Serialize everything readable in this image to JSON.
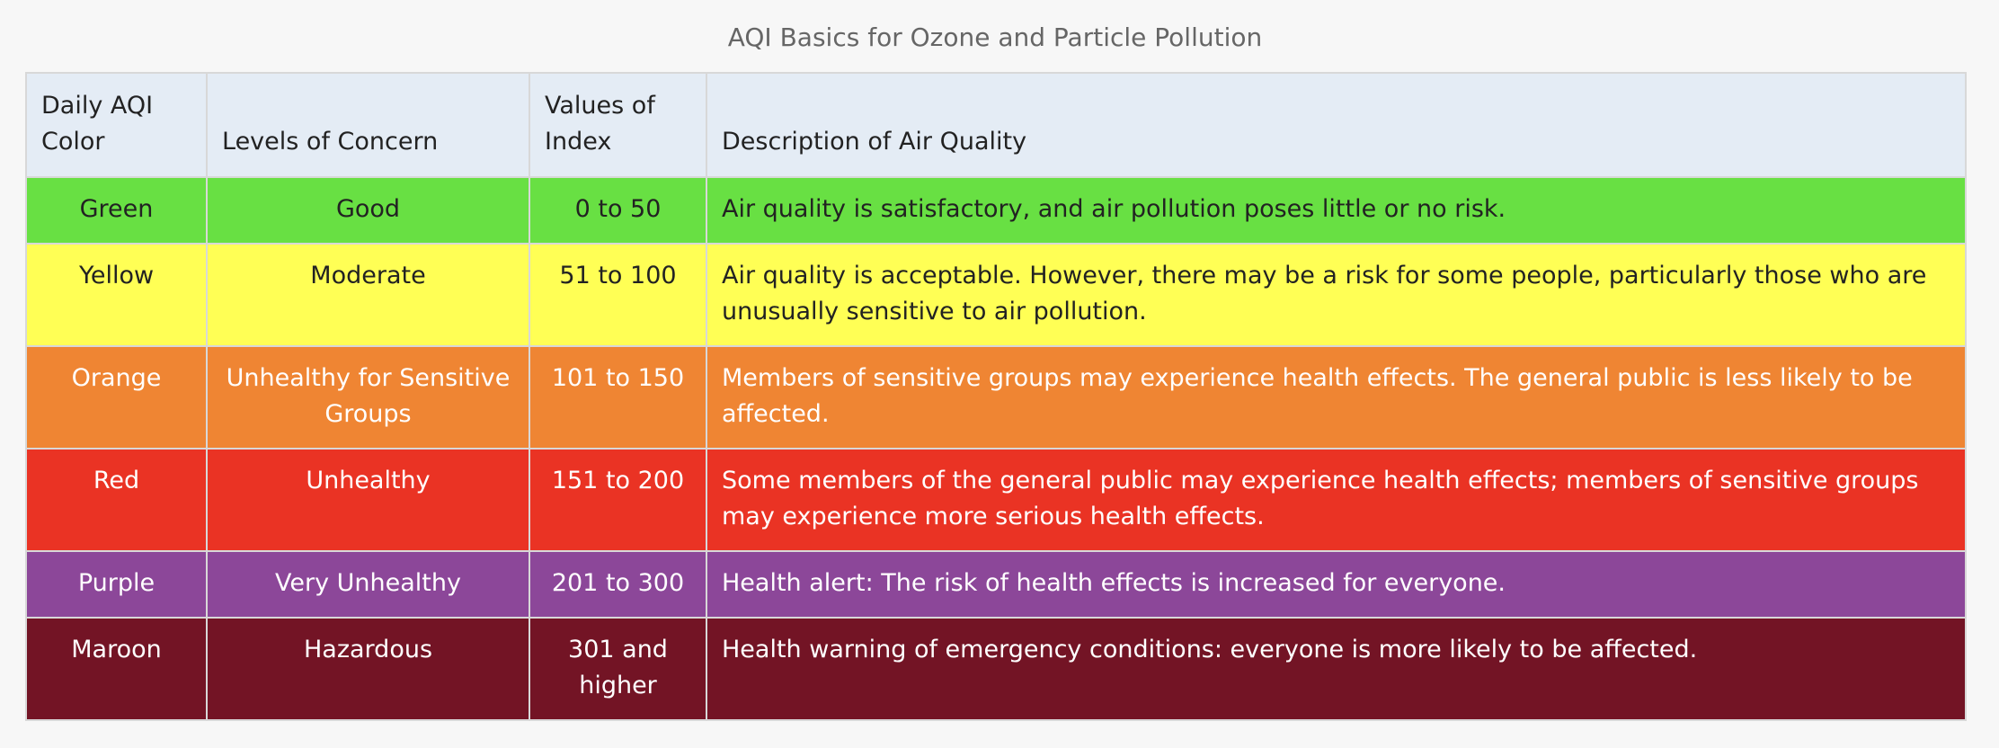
{
  "caption": "AQI Basics for Ozone and Particle Pollution",
  "headers": {
    "color": "Daily AQI Color",
    "concern": "Levels of Concern",
    "values": "Values of Index",
    "description": "Description of Air Quality"
  },
  "rows": [
    {
      "color": "Green",
      "concern": "Good",
      "values": "0 to 50",
      "description": "Air quality is satisfactory, and air pollution poses little or no risk.",
      "bg": "#68e043",
      "fg": "#222222"
    },
    {
      "color": "Yellow",
      "concern": "Moderate",
      "values": "51 to 100",
      "description": "Air quality is acceptable. However, there may be a risk for some people, particularly those who are unusually sensitive to air pollution.",
      "bg": "#ffff55",
      "fg": "#222222"
    },
    {
      "color": "Orange",
      "concern": "Unhealthy for Sensitive Groups",
      "values": "101 to 150",
      "description": "Members of sensitive groups may experience health effects. The general public is less likely to be affected.",
      "bg": "#ef8533",
      "fg": "#ffffff"
    },
    {
      "color": "Red",
      "concern": "Unhealthy",
      "values": "151 to 200",
      "description": "Some members of the general public may experience health effects; members of sensitive groups may experience more serious health effects.",
      "bg": "#ea3324",
      "fg": "#ffffff"
    },
    {
      "color": "Purple",
      "concern": "Very Unhealthy",
      "values": "201 to 300",
      "description": "Health alert: The risk of health effects is increased for everyone.",
      "bg": "#8c4799",
      "fg": "#ffffff"
    },
    {
      "color": "Maroon",
      "concern": "Hazardous",
      "values": "301 and higher",
      "description": "Health warning of emergency conditions: everyone is more likely to be affected.",
      "bg": "#731425",
      "fg": "#ffffff"
    }
  ]
}
